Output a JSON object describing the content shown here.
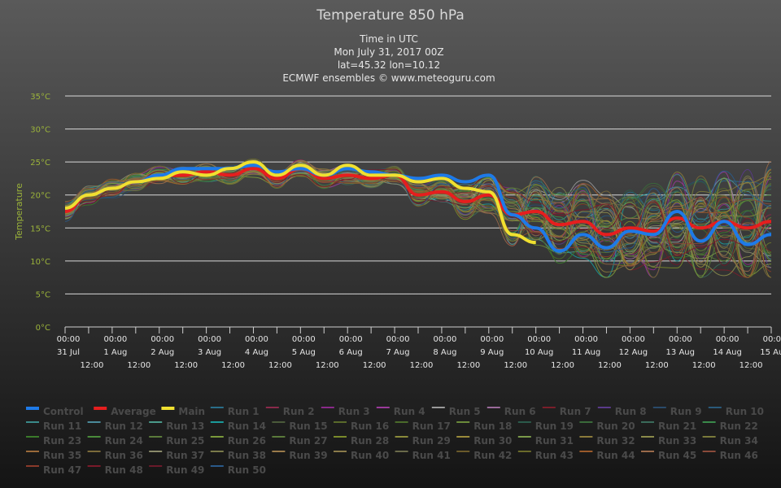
{
  "chart_data": {
    "type": "line",
    "title": "Temperature 850 hPa",
    "subtitle": [
      "Time in UTC",
      "Mon July 31, 2017 00Z",
      "lat=45.32 lon=10.12",
      "ECMWF ensembles © www.meteoguru.com"
    ],
    "ylabel": "Temperature",
    "y_unit": "°C",
    "ylim": [
      0,
      35
    ],
    "y_ticks": [
      0,
      5,
      10,
      15,
      20,
      25,
      30,
      35
    ],
    "y_tick_labels": [
      "0°C",
      "5°C",
      "10°C",
      "15°C",
      "20°C",
      "25°C",
      "30°C",
      "35°C"
    ],
    "x_range": [
      "2017-07-31T00:00",
      "2017-08-15T00:00"
    ],
    "x_ticks_top": [
      {
        "t": "2017-07-31T00:00",
        "time": "00:00",
        "date": "31 Jul"
      },
      {
        "t": "2017-08-01T00:00",
        "time": "00:00",
        "date": "1 Aug"
      },
      {
        "t": "2017-08-02T00:00",
        "time": "00:00",
        "date": "2 Aug"
      },
      {
        "t": "2017-08-03T00:00",
        "time": "00:00",
        "date": "3 Aug"
      },
      {
        "t": "2017-08-04T00:00",
        "time": "00:00",
        "date": "4 Aug"
      },
      {
        "t": "2017-08-05T00:00",
        "time": "00:00",
        "date": "5 Aug"
      },
      {
        "t": "2017-08-06T00:00",
        "time": "00:00",
        "date": "6 Aug"
      },
      {
        "t": "2017-08-07T00:00",
        "time": "00:00",
        "date": "7 Aug"
      },
      {
        "t": "2017-08-08T00:00",
        "time": "00:00",
        "date": "8 Aug"
      },
      {
        "t": "2017-08-09T00:00",
        "time": "00:00",
        "date": "9 Aug"
      },
      {
        "t": "2017-08-10T00:00",
        "time": "00:00",
        "date": "10 Aug"
      },
      {
        "t": "2017-08-11T00:00",
        "time": "00:00",
        "date": "11 Aug"
      },
      {
        "t": "2017-08-12T00:00",
        "time": "00:00",
        "date": "12 Aug"
      },
      {
        "t": "2017-08-13T00:00",
        "time": "00:00",
        "date": "13 Aug"
      },
      {
        "t": "2017-08-14T00:00",
        "time": "00:00",
        "date": "14 Aug"
      },
      {
        "t": "2017-08-15T00:00",
        "time": "00:00",
        "date": "15 Aug"
      }
    ],
    "x_ticks_mid": [
      {
        "t": "2017-07-31T12:00",
        "label": "12:00"
      },
      {
        "t": "2017-08-01T12:00",
        "label": "12:00"
      },
      {
        "t": "2017-08-02T12:00",
        "label": "12:00"
      },
      {
        "t": "2017-08-03T12:00",
        "label": "12:00"
      },
      {
        "t": "2017-08-04T12:00",
        "label": "12:00"
      },
      {
        "t": "2017-08-05T12:00",
        "label": "12:00"
      },
      {
        "t": "2017-08-06T12:00",
        "label": "12:00"
      },
      {
        "t": "2017-08-07T12:00",
        "label": "12:00"
      },
      {
        "t": "2017-08-08T12:00",
        "label": "12:00"
      },
      {
        "t": "2017-08-09T12:00",
        "label": "12:00"
      },
      {
        "t": "2017-08-10T12:00",
        "label": "12:00"
      },
      {
        "t": "2017-08-11T12:00",
        "label": "12:00"
      },
      {
        "t": "2017-08-12T12:00",
        "label": "12:00"
      },
      {
        "t": "2017-08-13T12:00",
        "label": "12:00"
      },
      {
        "t": "2017-08-14T12:00",
        "label": "12:00"
      }
    ],
    "grid": true,
    "legend_placement": "bottom",
    "series": [
      {
        "name": "Control",
        "color": "#1e7ae8",
        "x": [
          "2017-07-31T00:00",
          "2017-07-31T12:00",
          "2017-08-01T00:00",
          "2017-08-01T12:00",
          "2017-08-02T00:00",
          "2017-08-02T12:00",
          "2017-08-03T00:00",
          "2017-08-03T12:00",
          "2017-08-04T00:00",
          "2017-08-04T12:00",
          "2017-08-05T00:00",
          "2017-08-05T12:00",
          "2017-08-06T00:00",
          "2017-08-06T12:00",
          "2017-08-07T00:00",
          "2017-08-07T12:00",
          "2017-08-08T00:00",
          "2017-08-08T12:00",
          "2017-08-09T00:00",
          "2017-08-09T12:00",
          "2017-08-10T00:00",
          "2017-08-10T12:00",
          "2017-08-11T00:00",
          "2017-08-11T12:00",
          "2017-08-12T00:00",
          "2017-08-12T12:00",
          "2017-08-13T00:00",
          "2017-08-13T12:00",
          "2017-08-14T00:00",
          "2017-08-14T12:00",
          "2017-08-15T00:00"
        ],
        "values": [
          18,
          20,
          21,
          22,
          23,
          24,
          24,
          24,
          24.5,
          23.5,
          24,
          23,
          24,
          23.5,
          23,
          22.5,
          23,
          22,
          23,
          17,
          15,
          11.5,
          14,
          12,
          14.5,
          14,
          17.5,
          13,
          16,
          12.5,
          14
        ]
      },
      {
        "name": "Average",
        "color": "#e61e1e",
        "x": [
          "2017-07-31T00:00",
          "2017-07-31T12:00",
          "2017-08-01T00:00",
          "2017-08-01T12:00",
          "2017-08-02T00:00",
          "2017-08-02T12:00",
          "2017-08-03T00:00",
          "2017-08-03T12:00",
          "2017-08-04T00:00",
          "2017-08-04T12:00",
          "2017-08-05T00:00",
          "2017-08-05T12:00",
          "2017-08-06T00:00",
          "2017-08-06T12:00",
          "2017-08-07T00:00",
          "2017-08-07T12:00",
          "2017-08-08T00:00",
          "2017-08-08T12:00",
          "2017-08-09T00:00",
          "2017-08-09T12:00",
          "2017-08-10T00:00",
          "2017-08-10T12:00",
          "2017-08-11T00:00",
          "2017-08-11T12:00",
          "2017-08-12T00:00",
          "2017-08-12T12:00",
          "2017-08-13T00:00",
          "2017-08-13T12:00",
          "2017-08-14T00:00",
          "2017-08-14T12:00",
          "2017-08-15T00:00"
        ],
        "values": [
          17.5,
          20,
          21,
          22,
          23,
          23,
          23.5,
          23,
          24,
          22.5,
          24,
          22.5,
          23,
          22.5,
          23,
          20,
          20.5,
          19,
          20,
          17,
          17.5,
          15.5,
          16,
          14,
          15,
          14.5,
          16.5,
          15,
          16,
          15,
          16
        ]
      },
      {
        "name": "Main",
        "color": "#f0e030",
        "x": [
          "2017-07-31T00:00",
          "2017-07-31T12:00",
          "2017-08-01T00:00",
          "2017-08-01T12:00",
          "2017-08-02T00:00",
          "2017-08-02T12:00",
          "2017-08-03T00:00",
          "2017-08-03T12:00",
          "2017-08-04T00:00",
          "2017-08-04T12:00",
          "2017-08-05T00:00",
          "2017-08-05T12:00",
          "2017-08-06T00:00",
          "2017-08-06T12:00",
          "2017-08-07T00:00",
          "2017-08-07T12:00",
          "2017-08-08T00:00",
          "2017-08-08T12:00",
          "2017-08-09T00:00",
          "2017-08-09T12:00",
          "2017-08-10T00:00"
        ],
        "values": [
          18,
          20,
          21,
          22,
          22.5,
          23.5,
          23,
          24,
          25,
          23,
          24.5,
          23,
          24.5,
          23,
          23,
          22,
          22.5,
          21,
          20.5,
          14,
          12.8
        ]
      }
    ],
    "legend": [
      {
        "name": "Control",
        "color": "#1e7ae8",
        "bold": true
      },
      {
        "name": "Average",
        "color": "#e61e1e",
        "bold": true
      },
      {
        "name": "Main",
        "color": "#f0e030",
        "bold": true
      },
      {
        "name": "Run 1",
        "color": "#2a6e8a"
      },
      {
        "name": "Run 2",
        "color": "#8a2a4a"
      },
      {
        "name": "Run 3",
        "color": "#8a2a8a"
      },
      {
        "name": "Run 4",
        "color": "#9a3a9a"
      },
      {
        "name": "Run 5",
        "color": "#9a9a9a"
      },
      {
        "name": "Run 6",
        "color": "#9a6a9a"
      },
      {
        "name": "Run 7",
        "color": "#7a1e2a"
      },
      {
        "name": "Run 8",
        "color": "#5a3a8a"
      },
      {
        "name": "Run 9",
        "color": "#2a4a6a"
      },
      {
        "name": "Run 10",
        "color": "#2a5a7a"
      },
      {
        "name": "Run 11",
        "color": "#3a8a8a"
      },
      {
        "name": "Run 12",
        "color": "#4a8a9a"
      },
      {
        "name": "Run 13",
        "color": "#4a9a8a"
      },
      {
        "name": "Run 14",
        "color": "#1a9a9a"
      },
      {
        "name": "Run 15",
        "color": "#4a5a3a"
      },
      {
        "name": "Run 16",
        "color": "#5a6a2a"
      },
      {
        "name": "Run 17",
        "color": "#4a6a2a"
      },
      {
        "name": "Run 18",
        "color": "#6a8a3a"
      },
      {
        "name": "Run 19",
        "color": "#2a5a4a"
      },
      {
        "name": "Run 20",
        "color": "#3a6a3a"
      },
      {
        "name": "Run 21",
        "color": "#3a6a5a"
      },
      {
        "name": "Run 22",
        "color": "#3a8a4a"
      },
      {
        "name": "Run 23",
        "color": "#3a7a2a"
      },
      {
        "name": "Run 24",
        "color": "#4a8a3a"
      },
      {
        "name": "Run 25",
        "color": "#5a7a3a"
      },
      {
        "name": "Run 26",
        "color": "#7a9a3a"
      },
      {
        "name": "Run 27",
        "color": "#5a7a3a"
      },
      {
        "name": "Run 28",
        "color": "#7a8a2a"
      },
      {
        "name": "Run 29",
        "color": "#8a8a3a"
      },
      {
        "name": "Run 30",
        "color": "#9a8a3a"
      },
      {
        "name": "Run 31",
        "color": "#7a9a4a"
      },
      {
        "name": "Run 32",
        "color": "#8a7a3a"
      },
      {
        "name": "Run 33",
        "color": "#8a8a4a"
      },
      {
        "name": "Run 34",
        "color": "#7a7a3a"
      },
      {
        "name": "Run 35",
        "color": "#9a6a3a"
      },
      {
        "name": "Run 36",
        "color": "#7a6a3a"
      },
      {
        "name": "Run 37",
        "color": "#8a8a6a"
      },
      {
        "name": "Run 38",
        "color": "#7a7a4a"
      },
      {
        "name": "Run 39",
        "color": "#9a7a4a"
      },
      {
        "name": "Run 40",
        "color": "#8a7a4a"
      },
      {
        "name": "Run 41",
        "color": "#6a6a4a"
      },
      {
        "name": "Run 42",
        "color": "#6a5a2a"
      },
      {
        "name": "Run 43",
        "color": "#6a6a2a"
      },
      {
        "name": "Run 44",
        "color": "#9a5a2a"
      },
      {
        "name": "Run 45",
        "color": "#9a6a4a"
      },
      {
        "name": "Run 46",
        "color": "#8a4a3a"
      },
      {
        "name": "Run 47",
        "color": "#8a3a2a"
      },
      {
        "name": "Run 48",
        "color": "#7a1a2a"
      },
      {
        "name": "Run 49",
        "color": "#6a1a2a"
      },
      {
        "name": "Run 50",
        "color": "#2a5a8a"
      }
    ]
  }
}
